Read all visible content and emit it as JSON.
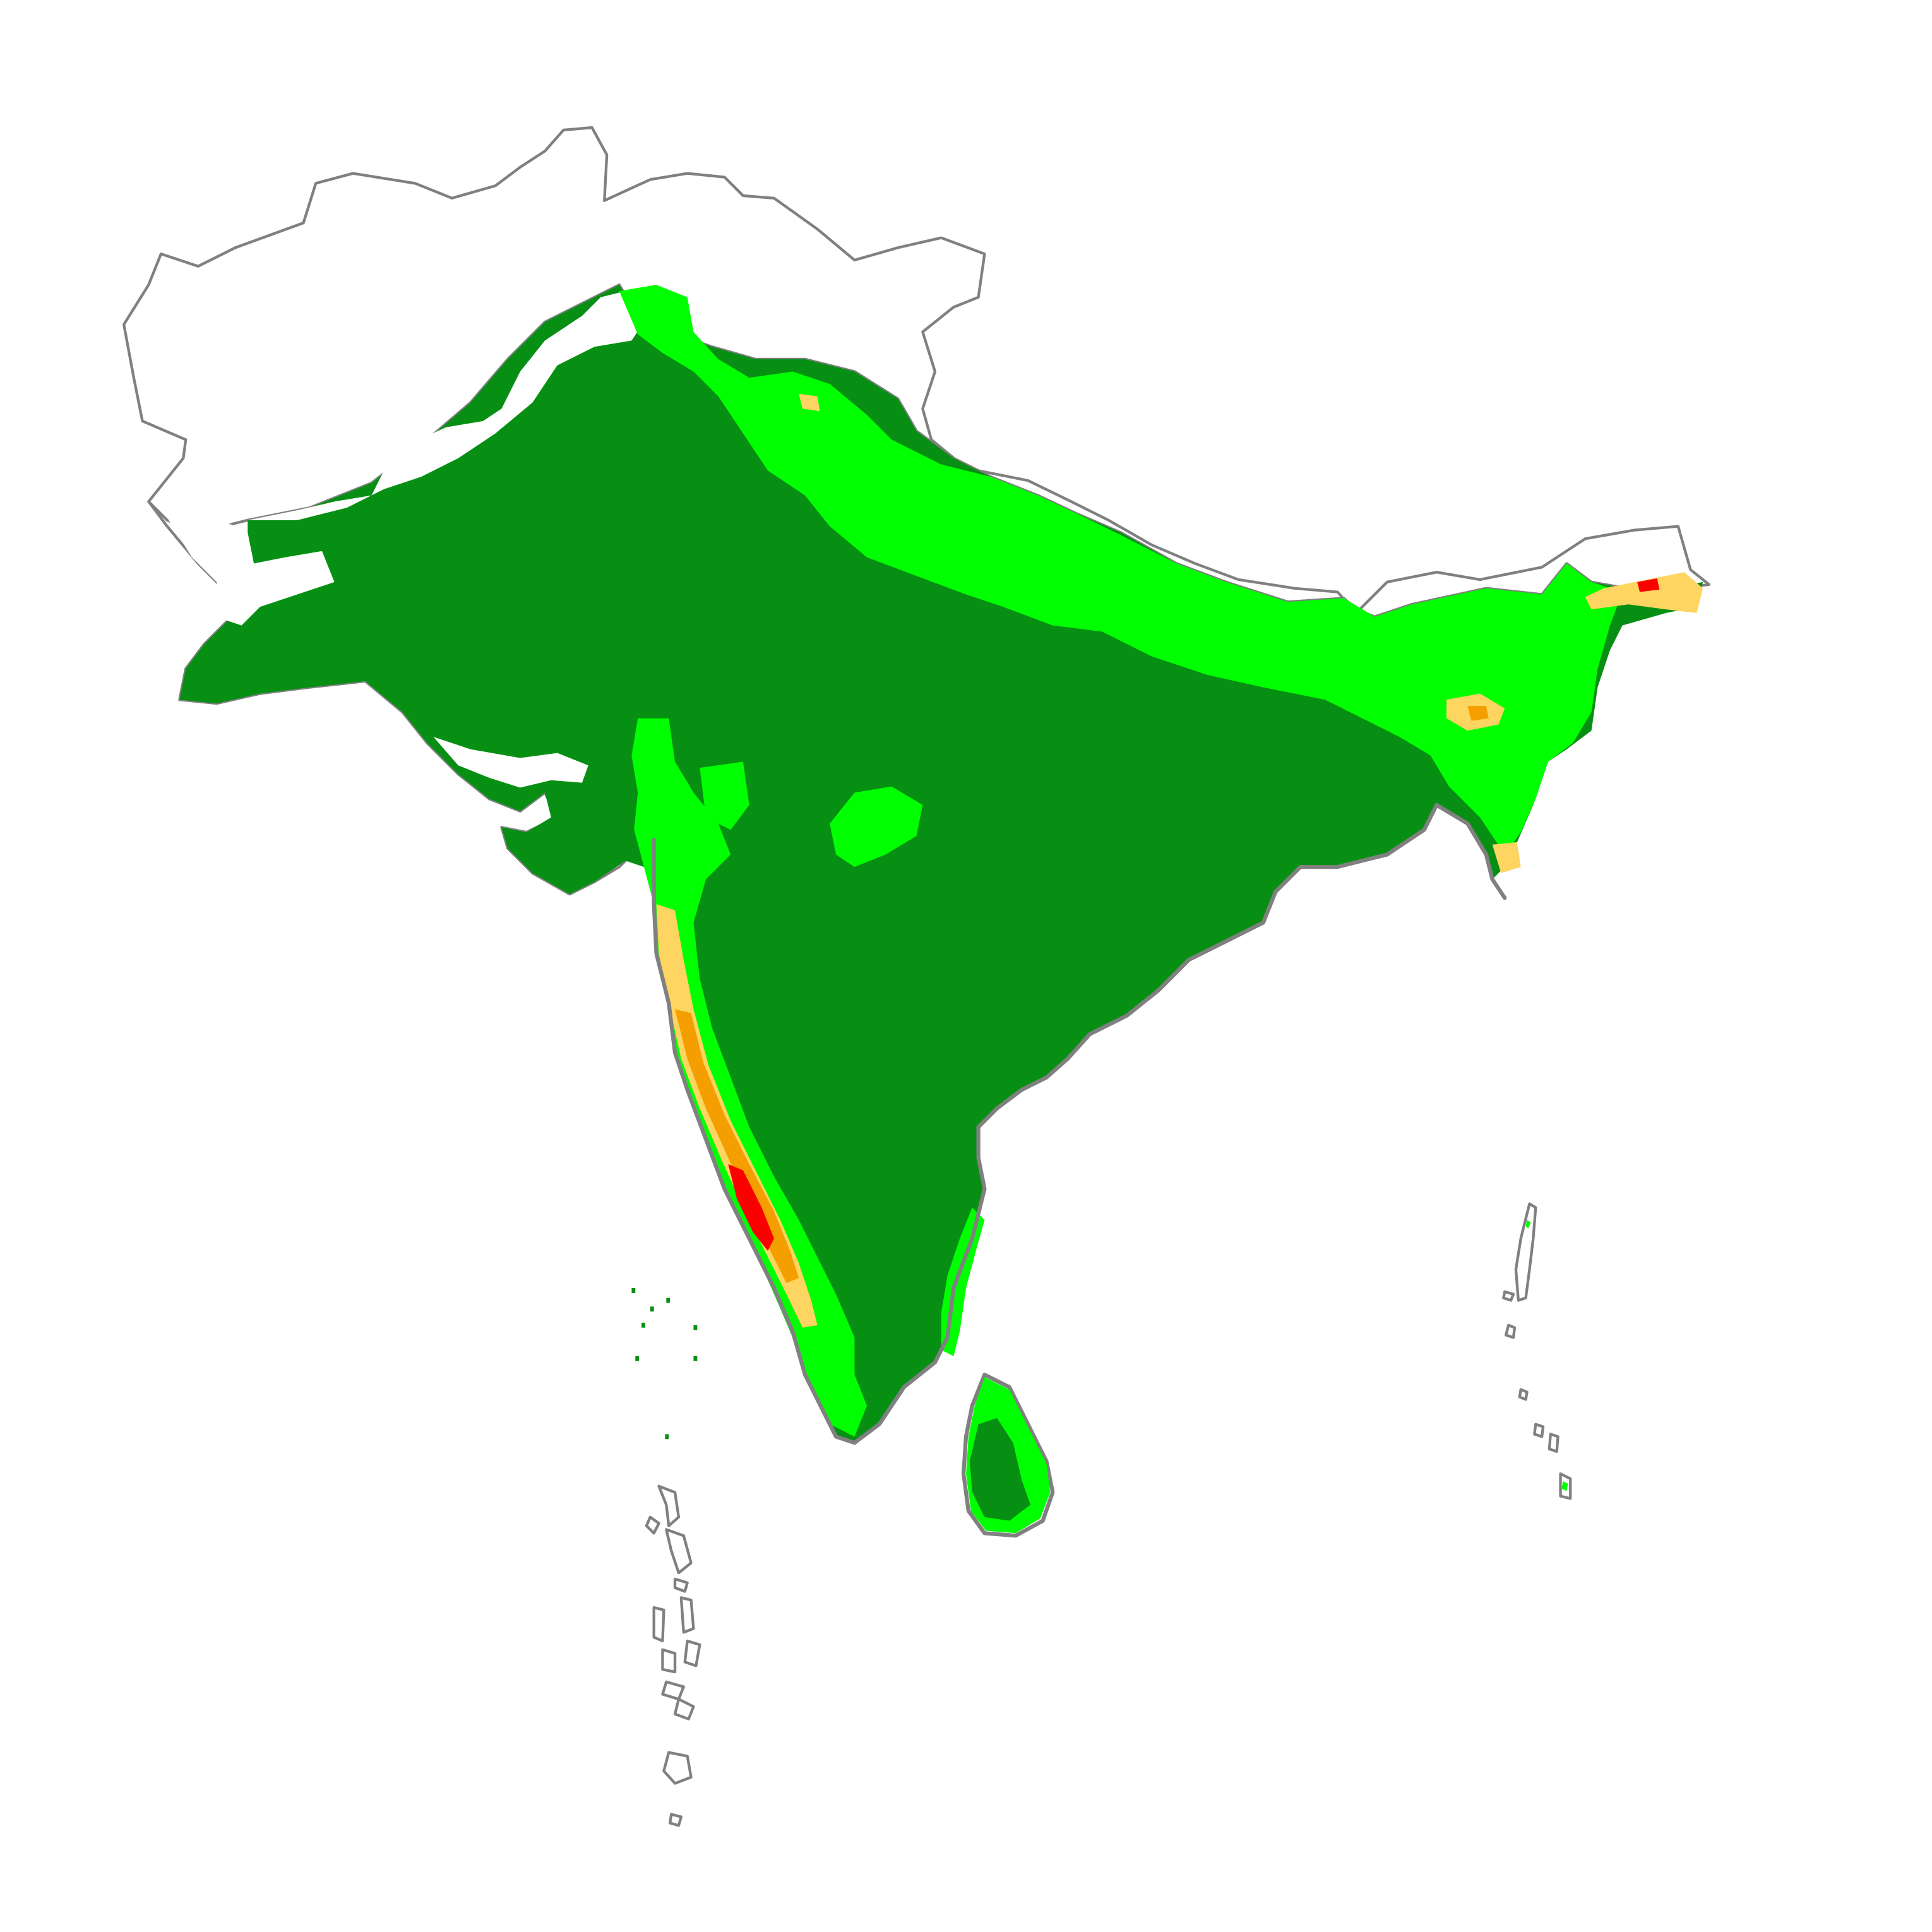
{
  "map": {
    "colors": {
      "background": "#ffffff",
      "border": "#808080",
      "zone_1": "#078f13",
      "zone_2": "#00ff00",
      "zone_3": "#fed560",
      "zone_4": "#f59e00",
      "zone_5": "#fc0000",
      "no_data": "#ffffff"
    },
    "layers": [
      {
        "id": "country-outlines",
        "kind": "outline",
        "color_key": "border"
      },
      {
        "id": "suitability-zone-1",
        "kind": "fill",
        "color_key": "zone_1"
      },
      {
        "id": "suitability-zone-2",
        "kind": "fill",
        "color_key": "zone_2"
      },
      {
        "id": "suitability-zone-3",
        "kind": "fill",
        "color_key": "zone_3"
      },
      {
        "id": "suitability-zone-4",
        "kind": "fill",
        "color_key": "zone_4"
      },
      {
        "id": "suitability-zone-5",
        "kind": "fill",
        "color_key": "zone_5"
      }
    ],
    "labels": [],
    "legend": null
  }
}
